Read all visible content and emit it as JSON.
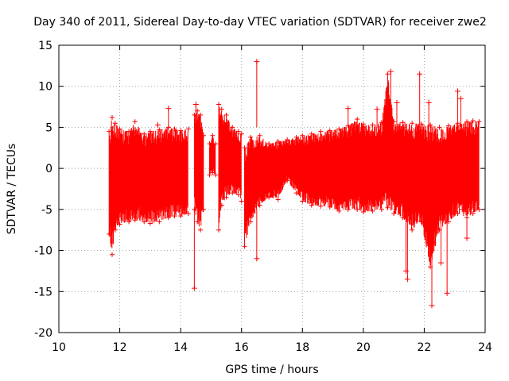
{
  "chart_data": {
    "type": "scatter",
    "title": "Day 340 of 2011, Sidereal Day-to-day VTEC variation (SDTVAR) for receiver zwe2",
    "xlabel": "GPS time / hours",
    "ylabel": "SDTVAR / TECUs",
    "xlim": [
      10,
      24
    ],
    "ylim": [
      -20,
      15
    ],
    "x_ticks": [
      "10",
      "12",
      "14",
      "16",
      "18",
      "20",
      "22",
      "24"
    ],
    "y_ticks": [
      "15",
      "10",
      "5",
      "0",
      "-5",
      "-10",
      "-15",
      "-20"
    ],
    "grid": true,
    "legend": "none",
    "series_color": "#ff0000",
    "marker": "plus",
    "series": [
      {
        "name": "SDTVAR envelope",
        "segments": [
          {
            "x": [
              11.65,
              11.75,
              11.85,
              12.0,
              12.3,
              12.5,
              12.8,
              13.0,
              13.3,
              13.6,
              13.8,
              14.0,
              14.25
            ],
            "upper": [
              4.5,
              6.2,
              5.5,
              4.8,
              4.5,
              5.7,
              4.2,
              4.5,
              4.7,
              5.0,
              4.8,
              4.6,
              4.8
            ],
            "lower": [
              -8.0,
              -10.5,
              -7.5,
              -6.8,
              -6.5,
              -6.3,
              -6.5,
              -6.7,
              -6.5,
              -6.0,
              -5.8,
              -5.8,
              -5.5
            ]
          },
          {
            "x": [
              14.45,
              14.55,
              14.65,
              14.75
            ],
            "upper": [
              6.5,
              7.0,
              6.5,
              4.0
            ],
            "lower": [
              -5.0,
              -6.5,
              -7.5,
              -5.0
            ]
          },
          {
            "x": [
              14.95,
              15.05,
              15.15
            ],
            "upper": [
              3.0,
              4.0,
              3.0
            ],
            "lower": [
              -0.8,
              -0.5,
              -0.8
            ]
          },
          {
            "x": [
              15.25,
              15.35,
              15.5,
              15.7,
              15.9,
              16.0
            ],
            "upper": [
              7.8,
              7.2,
              6.5,
              5.0,
              4.5,
              4.2
            ],
            "lower": [
              -7.5,
              -4.5,
              -3.5,
              -3.0,
              -3.2,
              -4.0
            ]
          },
          {
            "x": [
              16.1,
              16.3,
              16.6,
              16.9,
              17.2,
              17.5,
              17.8,
              18.0,
              18.3,
              18.6,
              18.9,
              19.2,
              19.5,
              19.8,
              20.0,
              20.3,
              20.6,
              20.8,
              21.0,
              21.3,
              21.6,
              21.9,
              22.2,
              22.5,
              22.8,
              23.1,
              23.4,
              23.6,
              23.8
            ],
            "upper": [
              2.5,
              3.8,
              4.0,
              3.0,
              3.3,
              3.5,
              3.8,
              4.0,
              4.2,
              4.5,
              4.6,
              4.8,
              5.2,
              6.0,
              5.4,
              5.3,
              5.6,
              11.5,
              5.7,
              5.6,
              5.5,
              5.4,
              5.3,
              5.0,
              5.2,
              5.5,
              5.7,
              5.8,
              5.7
            ],
            "lower": [
              -9.5,
              -6.5,
              -4.5,
              -3.5,
              -3.8,
              -1.5,
              -3.0,
              -4.0,
              -4.5,
              -4.6,
              -4.7,
              -5.2,
              -5.0,
              -5.0,
              -5.3,
              -5.2,
              -5.0,
              -4.8,
              -5.5,
              -6.0,
              -7.5,
              -6.5,
              -12.0,
              -7.5,
              -6.5,
              -5.5,
              -6.0,
              -5.5,
              -5.0
            ]
          }
        ]
      },
      {
        "name": "isolated points",
        "x": [
          13.25,
          13.6,
          14.5,
          14.45,
          16.5,
          16.5,
          19.5,
          20.45,
          20.9,
          21.1,
          21.4,
          21.45,
          21.85,
          22.15,
          22.25,
          22.3,
          22.55,
          22.75,
          23.1,
          23.2,
          23.25,
          23.4
        ],
        "y": [
          5.3,
          7.3,
          7.8,
          -14.6,
          13.0,
          -11.0,
          7.3,
          7.2,
          11.8,
          8.0,
          -12.5,
          -13.5,
          11.5,
          8.0,
          -16.7,
          -9.0,
          -11.5,
          -15.2,
          9.4,
          8.5,
          -5.0,
          -8.5
        ]
      }
    ]
  }
}
